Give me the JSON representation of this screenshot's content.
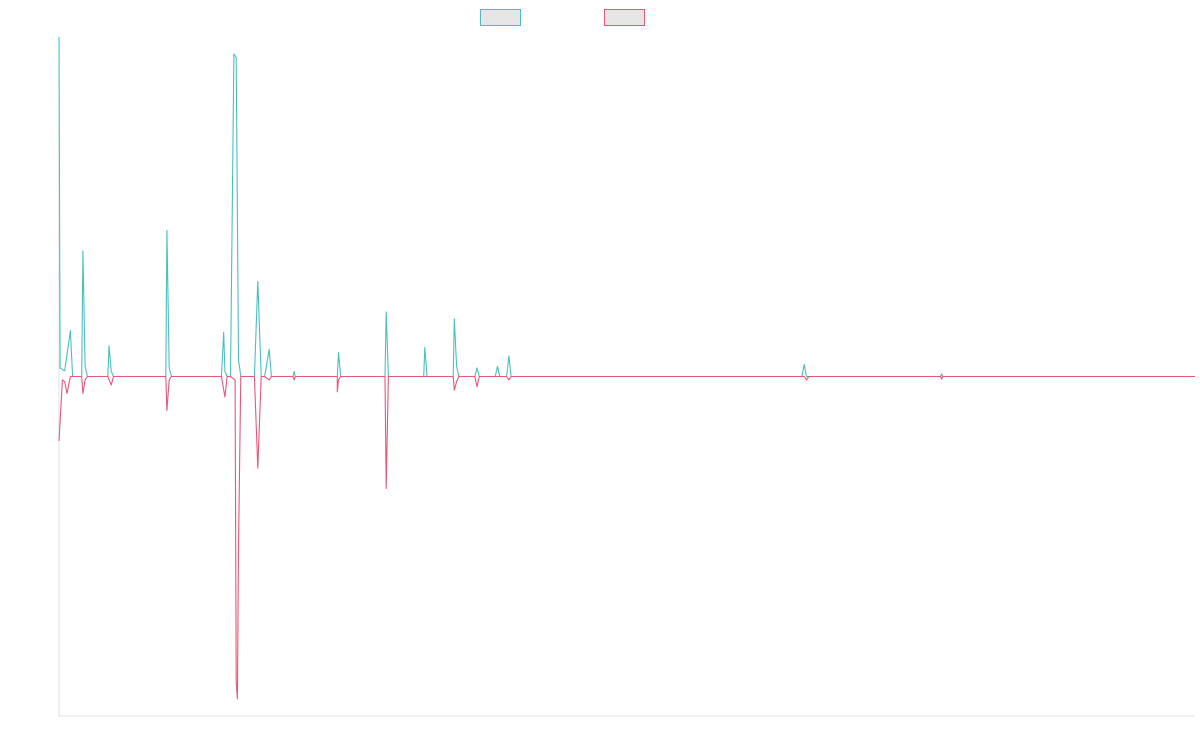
{
  "chart_data": {
    "type": "line",
    "title": "",
    "xlabel": "",
    "ylabel": "",
    "grid": false,
    "legend_position": "top-center",
    "x_range": [
      0,
      1000
    ],
    "y_range": [
      -100,
      100
    ],
    "baseline": 0,
    "series": [
      {
        "color": "#4bbfc0",
        "legend_fill": "#e6e6e6",
        "points": [
          [
            0,
            100
          ],
          [
            1,
            2.5
          ],
          [
            3,
            2
          ],
          [
            5,
            1.7
          ],
          [
            10,
            13.5
          ],
          [
            12,
            0
          ],
          [
            20,
            0
          ],
          [
            21,
            37
          ],
          [
            23,
            3
          ],
          [
            25,
            0
          ],
          [
            30,
            0
          ],
          [
            32,
            0
          ],
          [
            34,
            0
          ],
          [
            36,
            0
          ],
          [
            43,
            0
          ],
          [
            44,
            9
          ],
          [
            46,
            1.5
          ],
          [
            48,
            0
          ],
          [
            50,
            0
          ],
          [
            53,
            0
          ],
          [
            55,
            0
          ],
          [
            94,
            0
          ],
          [
            95,
            43
          ],
          [
            97,
            2.5
          ],
          [
            99,
            0
          ],
          [
            143,
            0
          ],
          [
            146,
            1.5
          ],
          [
            145,
            13
          ],
          [
            148,
            0
          ],
          [
            151,
            0
          ],
          [
            154,
            95
          ],
          [
            156,
            94
          ],
          [
            158,
            5
          ],
          [
            160,
            0
          ],
          [
            163,
            0
          ],
          [
            166,
            0
          ],
          [
            172,
            0
          ],
          [
            175,
            28
          ],
          [
            178,
            0
          ],
          [
            181,
            0
          ],
          [
            185,
            8
          ],
          [
            187,
            0
          ],
          [
            206,
            0
          ],
          [
            207,
            1.5
          ],
          [
            208,
            0
          ],
          [
            229,
            0
          ],
          [
            230,
            0
          ],
          [
            231,
            0
          ],
          [
            245,
            0
          ],
          [
            246,
            7
          ],
          [
            248,
            0
          ],
          [
            287,
            0
          ],
          [
            288,
            19
          ],
          [
            290,
            0
          ],
          [
            293,
            0
          ],
          [
            295,
            0
          ],
          [
            321,
            0
          ],
          [
            322,
            8.5
          ],
          [
            324,
            0
          ],
          [
            347,
            0
          ],
          [
            348,
            17
          ],
          [
            350,
            3
          ],
          [
            352,
            0
          ],
          [
            366,
            0
          ],
          [
            368,
            2.5
          ],
          [
            370,
            0
          ],
          [
            384,
            0
          ],
          [
            386,
            3
          ],
          [
            388,
            0
          ],
          [
            394,
            0
          ],
          [
            396,
            6
          ],
          [
            398,
            0
          ],
          [
            418,
            0
          ],
          [
            419,
            0
          ],
          [
            420,
            0
          ],
          [
            654,
            0
          ],
          [
            656,
            3.5
          ],
          [
            658,
            0
          ],
          [
            776,
            0
          ],
          [
            777,
            0.8
          ],
          [
            778,
            0
          ],
          [
            1000,
            0
          ]
        ]
      },
      {
        "color": "#e8577a",
        "legend_fill": "#e6e6e6",
        "points": [
          [
            0,
            -19
          ],
          [
            3,
            -1
          ],
          [
            5,
            -1.5
          ],
          [
            7,
            -5
          ],
          [
            10,
            0
          ],
          [
            20,
            0
          ],
          [
            21,
            -5
          ],
          [
            23,
            -1
          ],
          [
            25,
            0
          ],
          [
            30,
            0
          ],
          [
            32,
            0
          ],
          [
            34,
            0
          ],
          [
            36,
            0
          ],
          [
            43,
            0
          ],
          [
            46,
            -2.5
          ],
          [
            48,
            0
          ],
          [
            50,
            0
          ],
          [
            53,
            0
          ],
          [
            55,
            0
          ],
          [
            94,
            0
          ],
          [
            95,
            -10
          ],
          [
            97,
            -1
          ],
          [
            99,
            0
          ],
          [
            143,
            0
          ],
          [
            146,
            -6
          ],
          [
            148,
            0
          ],
          [
            151,
            0
          ],
          [
            155,
            -1
          ],
          [
            156,
            -90
          ],
          [
            157,
            -95
          ],
          [
            158,
            -50
          ],
          [
            160,
            0
          ],
          [
            163,
            0
          ],
          [
            166,
            0
          ],
          [
            172,
            0
          ],
          [
            175,
            -27
          ],
          [
            178,
            0
          ],
          [
            181,
            0
          ],
          [
            185,
            -1
          ],
          [
            187,
            0
          ],
          [
            206,
            0
          ],
          [
            207,
            -1
          ],
          [
            208,
            0
          ],
          [
            245,
            0
          ],
          [
            246,
            -1
          ],
          [
            248,
            0
          ],
          [
            244,
            0
          ],
          [
            245,
            -4.5
          ],
          [
            246,
            -1
          ],
          [
            248,
            0
          ],
          [
            287,
            0
          ],
          [
            288,
            -33
          ],
          [
            290,
            0
          ],
          [
            347,
            0
          ],
          [
            348,
            -4
          ],
          [
            350,
            -1.5
          ],
          [
            352,
            0
          ],
          [
            366,
            0
          ],
          [
            368,
            -3
          ],
          [
            370,
            0
          ],
          [
            394,
            0
          ],
          [
            396,
            -1
          ],
          [
            398,
            0
          ],
          [
            654,
            0
          ],
          [
            656,
            0
          ],
          [
            658,
            -1
          ],
          [
            660,
            0
          ],
          [
            776,
            0
          ],
          [
            777,
            -0.8
          ],
          [
            778,
            0
          ],
          [
            1000,
            0
          ]
        ]
      }
    ]
  }
}
